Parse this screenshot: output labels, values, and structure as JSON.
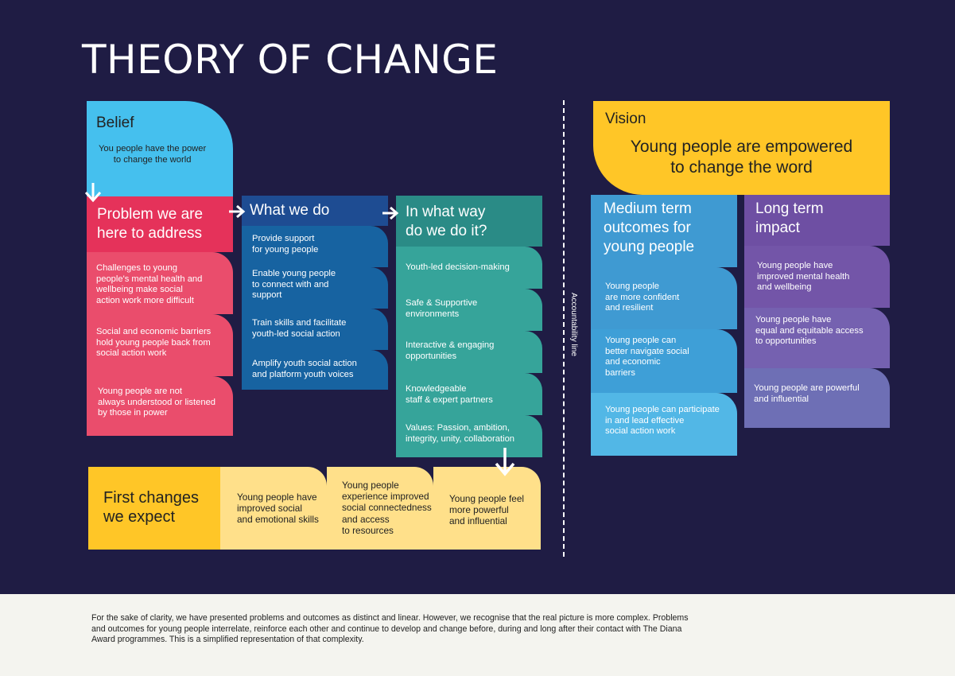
{
  "title": "THEORY OF CHANGE",
  "belief": {
    "header": "Belief",
    "text": "You people have the power\nto change the world"
  },
  "problem": {
    "header": "Problem we are\nhere to address",
    "items": [
      "Challenges to young\npeople's mental health and\nwellbeing make social\naction work more difficult",
      "Social and economic barriers\nhold young people back from\nsocial action work",
      "Young people are not\nalways understood or listened\nby those in power"
    ]
  },
  "what_we_do": {
    "header": "What we do",
    "items": [
      "Provide support\nfor young people",
      "Enable young people\nto connect with and\nsupport",
      "Train skills and facilitate\nyouth-led social action",
      "Amplify youth social action\nand platform youth voices"
    ]
  },
  "in_what_way": {
    "header": "In what way\ndo we do it?",
    "items": [
      "Youth-led decision-making",
      "Safe & Supportive\nenvironments",
      "Interactive & engaging\nopportunities",
      "Knowledgeable\nstaff & expert partners",
      "Values: Passion, ambition,\nintegrity, unity, collaboration"
    ]
  },
  "first_changes": {
    "header": "First changes\nwe expect",
    "items": [
      "Young people have\nimproved social\nand emotional skills",
      "Young people\nexperience improved\nsocial connectedness\nand access\nto resources",
      "Young people feel\nmore powerful\nand influential"
    ]
  },
  "accountability": "Accountability line",
  "vision": {
    "header": "Vision",
    "text": "Young people are empowered\nto change the word"
  },
  "medium_term": {
    "header": "Medium term\noutcomes for\nyoung people",
    "items": [
      "Young people\nare more confident\nand resilient",
      "Young people can\nbetter navigate social\nand economic\nbarriers",
      "Young people can participate\nin and lead effective\nsocial action work"
    ]
  },
  "long_term": {
    "header": "Long term\nimpact",
    "items": [
      "Young people have\nimproved mental health\nand wellbeing",
      "Young people have\nequal and equitable access\nto opportunities",
      "Young people are powerful\nand influential"
    ]
  },
  "footer": "For the sake of clarity, we have presented problems and outcomes as distinct and linear. However, we recognise that the real picture is more complex. Problems and outcomes for young people interrelate, reinforce each other and continue to develop and change before, during and long after their contact with The Diana Award programmes. This is a simplified representation of that complexity.",
  "colors": {
    "background": "#1f1c44",
    "belief": "#45c0ee",
    "problem_header": "#e5325a",
    "problem_item": "#ea4d6c",
    "what_header": "#1e4c92",
    "what_item": "#1763a1",
    "way_header": "#2a8b86",
    "way_item": "#36a49a",
    "first_header": "#ffc627",
    "first_item": "#ffe08a",
    "vision": "#ffc627",
    "medium": "#3f9ad2",
    "long_header": "#6e4fa3",
    "long_item": "#7a64b3"
  }
}
